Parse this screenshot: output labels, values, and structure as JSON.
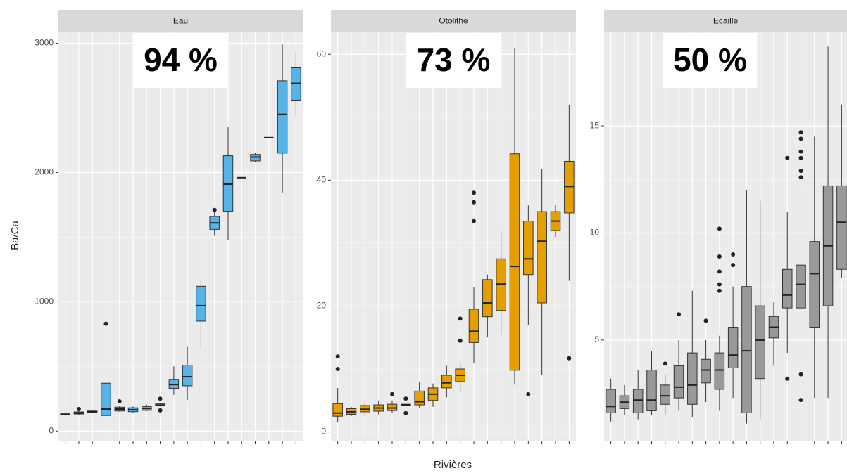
{
  "chart_data": [
    {
      "type": "box",
      "title": "Eau",
      "annotation": "94 %",
      "y_label": "Ba/Ca",
      "color": "#56b4e9",
      "ylim": [
        -80,
        3090
      ],
      "yticks": [
        0,
        1000,
        2000,
        3000
      ],
      "grid": true,
      "categories": [
        null,
        null,
        null,
        null,
        null,
        null,
        null,
        null,
        null,
        null,
        null,
        null,
        null,
        null,
        null,
        null,
        null,
        null
      ],
      "boxes": [
        {
          "min": 115,
          "q1": 125,
          "median": 130,
          "q3": 140,
          "max": 150,
          "outliers": []
        },
        {
          "min": 125,
          "q1": 132,
          "median": 140,
          "q3": 148,
          "max": 155,
          "outliers": [
            170
          ]
        },
        {
          "min": 140,
          "q1": 145,
          "median": 150,
          "q3": 155,
          "max": 160,
          "outliers": []
        },
        {
          "min": 110,
          "q1": 120,
          "median": 170,
          "q3": 370,
          "max": 470,
          "outliers": [
            830
          ]
        },
        {
          "min": 150,
          "q1": 155,
          "median": 170,
          "q3": 185,
          "max": 195,
          "outliers": [
            230
          ]
        },
        {
          "min": 140,
          "q1": 150,
          "median": 165,
          "q3": 180,
          "max": 190,
          "outliers": []
        },
        {
          "min": 155,
          "q1": 160,
          "median": 175,
          "q3": 190,
          "max": 205,
          "outliers": []
        },
        {
          "min": 190,
          "q1": 195,
          "median": 200,
          "q3": 210,
          "max": 215,
          "outliers": [
            160,
            250
          ]
        },
        {
          "min": 280,
          "q1": 330,
          "median": 360,
          "q3": 400,
          "max": 500,
          "outliers": []
        },
        {
          "min": 240,
          "q1": 350,
          "median": 420,
          "q3": 510,
          "max": 650,
          "outliers": []
        },
        {
          "min": 630,
          "q1": 850,
          "median": 970,
          "q3": 1120,
          "max": 1170,
          "outliers": []
        },
        {
          "min": 1510,
          "q1": 1560,
          "median": 1610,
          "q3": 1660,
          "max": 1720,
          "outliers": [
            1710
          ]
        },
        {
          "min": 1480,
          "q1": 1700,
          "median": 1910,
          "q3": 2130,
          "max": 2350,
          "outliers": []
        },
        {
          "min": 1960,
          "q1": 1960,
          "median": 1960,
          "q3": 1960,
          "max": 1960,
          "outliers": []
        },
        {
          "min": 2080,
          "q1": 2090,
          "median": 2120,
          "q3": 2140,
          "max": 2150,
          "outliers": []
        },
        {
          "min": 2270,
          "q1": 2270,
          "median": 2270,
          "q3": 2270,
          "max": 2270,
          "outliers": []
        },
        {
          "min": 1840,
          "q1": 2150,
          "median": 2450,
          "q3": 2710,
          "max": 2990,
          "outliers": []
        },
        {
          "min": 2430,
          "q1": 2560,
          "median": 2690,
          "q3": 2810,
          "max": 2940,
          "outliers": []
        }
      ]
    },
    {
      "type": "box",
      "title": "Otolithe",
      "annotation": "73 %",
      "x_label": "Rivières",
      "color": "#e69f00",
      "ylim": [
        -1.5,
        63.6
      ],
      "yticks": [
        0,
        20,
        40,
        60
      ],
      "grid": true,
      "categories": [
        null,
        null,
        null,
        null,
        null,
        null,
        null,
        null,
        null,
        null,
        null,
        null,
        null,
        null,
        null,
        null,
        null,
        null
      ],
      "boxes": [
        {
          "min": 1.5,
          "q1": 2.5,
          "median": 3,
          "q3": 4.5,
          "max": 7,
          "outliers": [
            10,
            12
          ]
        },
        {
          "min": 2.5,
          "q1": 2.8,
          "median": 3.2,
          "q3": 3.7,
          "max": 4,
          "outliers": []
        },
        {
          "min": 2.5,
          "q1": 3.2,
          "median": 3.6,
          "q3": 4.2,
          "max": 4.8,
          "outliers": []
        },
        {
          "min": 2.8,
          "q1": 3.3,
          "median": 3.8,
          "q3": 4.3,
          "max": 5,
          "outliers": []
        },
        {
          "min": 3,
          "q1": 3.4,
          "median": 3.8,
          "q3": 4.4,
          "max": 5,
          "outliers": [
            6
          ]
        },
        {
          "min": 4.2,
          "q1": 4.2,
          "median": 4.3,
          "q3": 4.4,
          "max": 4.5,
          "outliers": [
            3,
            5.3
          ]
        },
        {
          "min": 3.8,
          "q1": 4.3,
          "median": 4.8,
          "q3": 6.5,
          "max": 8,
          "outliers": []
        },
        {
          "min": 4,
          "q1": 5,
          "median": 6,
          "q3": 7,
          "max": 7.7,
          "outliers": []
        },
        {
          "min": 5.5,
          "q1": 7,
          "median": 7.8,
          "q3": 9,
          "max": 10.5,
          "outliers": []
        },
        {
          "min": 6.5,
          "q1": 8,
          "median": 9,
          "q3": 10,
          "max": 11,
          "outliers": [
            14.5,
            18
          ]
        },
        {
          "min": 11,
          "q1": 14.2,
          "median": 16,
          "q3": 19.5,
          "max": 23,
          "outliers": [
            33.5,
            36.5,
            38
          ]
        },
        {
          "min": 15,
          "q1": 18.3,
          "median": 20.5,
          "q3": 24.2,
          "max": 25,
          "outliers": []
        },
        {
          "min": 15.5,
          "q1": 19.3,
          "median": 23.5,
          "q3": 27.5,
          "max": 32,
          "outliers": []
        },
        {
          "min": 7.5,
          "q1": 9.8,
          "median": 26.3,
          "q3": 44.2,
          "max": 61,
          "outliers": []
        },
        {
          "min": 17,
          "q1": 25,
          "median": 27.5,
          "q3": 33.5,
          "max": 36,
          "outliers": [
            6
          ]
        },
        {
          "min": 9,
          "q1": 20.5,
          "median": 30.3,
          "q3": 35,
          "max": 41.8,
          "outliers": []
        },
        {
          "min": 31,
          "q1": 32,
          "median": 33.5,
          "q3": 35,
          "max": 36,
          "outliers": []
        },
        {
          "min": 24,
          "q1": 34.8,
          "median": 39,
          "q3": 43,
          "max": 52,
          "outliers": [
            11.7
          ]
        }
      ]
    },
    {
      "type": "box",
      "title": "Ecaille",
      "annotation": "50 %",
      "color": "#999999",
      "ylim": [
        0.27,
        19.4
      ],
      "yticks": [
        5,
        10,
        15
      ],
      "grid": true,
      "categories": [
        null,
        null,
        null,
        null,
        null,
        null,
        null,
        null,
        null,
        null,
        null,
        null,
        null,
        null,
        null,
        null,
        null,
        null
      ],
      "boxes": [
        {
          "min": 1.2,
          "q1": 1.6,
          "median": 1.9,
          "q3": 2.7,
          "max": 3.2,
          "outliers": []
        },
        {
          "min": 1.5,
          "q1": 1.8,
          "median": 2.1,
          "q3": 2.4,
          "max": 2.9,
          "outliers": []
        },
        {
          "min": 1.3,
          "q1": 1.6,
          "median": 2.2,
          "q3": 2.7,
          "max": 3.6,
          "outliers": []
        },
        {
          "min": 1.5,
          "q1": 1.7,
          "median": 2.2,
          "q3": 3.6,
          "max": 4.5,
          "outliers": []
        },
        {
          "min": 1.5,
          "q1": 2,
          "median": 2.4,
          "q3": 2.9,
          "max": 3.4,
          "outliers": [
            3.9
          ]
        },
        {
          "min": 1.7,
          "q1": 2.3,
          "median": 2.8,
          "q3": 3.8,
          "max": 5,
          "outliers": [
            6.2
          ]
        },
        {
          "min": 1.4,
          "q1": 2,
          "median": 2.9,
          "q3": 4.4,
          "max": 7.3,
          "outliers": []
        },
        {
          "min": 2.1,
          "q1": 3,
          "median": 3.6,
          "q3": 4.1,
          "max": 5,
          "outliers": [
            5.9
          ]
        },
        {
          "min": 1.7,
          "q1": 2.7,
          "median": 3.6,
          "q3": 4.4,
          "max": 5.2,
          "outliers": [
            7.3,
            7.6,
            8.2,
            8.9,
            10.2
          ]
        },
        {
          "min": 2.3,
          "q1": 3.7,
          "median": 4.3,
          "q3": 5.6,
          "max": 7.5,
          "outliers": [
            8.5,
            9
          ]
        },
        {
          "min": 1.1,
          "q1": 1.6,
          "median": 4.5,
          "q3": 7.5,
          "max": 12,
          "outliers": []
        },
        {
          "min": 1.3,
          "q1": 3.2,
          "median": 5,
          "q3": 6.6,
          "max": 11.5,
          "outliers": []
        },
        {
          "min": 3.8,
          "q1": 5.1,
          "median": 5.6,
          "q3": 6.1,
          "max": 6.8,
          "outliers": []
        },
        {
          "min": 4.4,
          "q1": 6.5,
          "median": 7.1,
          "q3": 8.3,
          "max": 11,
          "outliers": [
            3.2,
            13.5
          ]
        },
        {
          "min": 4.2,
          "q1": 6.5,
          "median": 7.6,
          "q3": 8.5,
          "max": 11.7,
          "outliers": [
            2.2,
            3.4,
            12.6,
            12.9,
            13.5,
            13.8,
            14.4,
            14.7
          ]
        },
        {
          "min": 2.3,
          "q1": 5.6,
          "median": 8.1,
          "q3": 9.6,
          "max": 14.5,
          "outliers": []
        },
        {
          "min": 2.3,
          "q1": 6.6,
          "median": 9.4,
          "q3": 12.2,
          "max": 18.7,
          "outliers": []
        },
        {
          "min": 7.9,
          "q1": 8.3,
          "median": 10.5,
          "q3": 12.2,
          "max": 16,
          "outliers": []
        }
      ]
    }
  ]
}
